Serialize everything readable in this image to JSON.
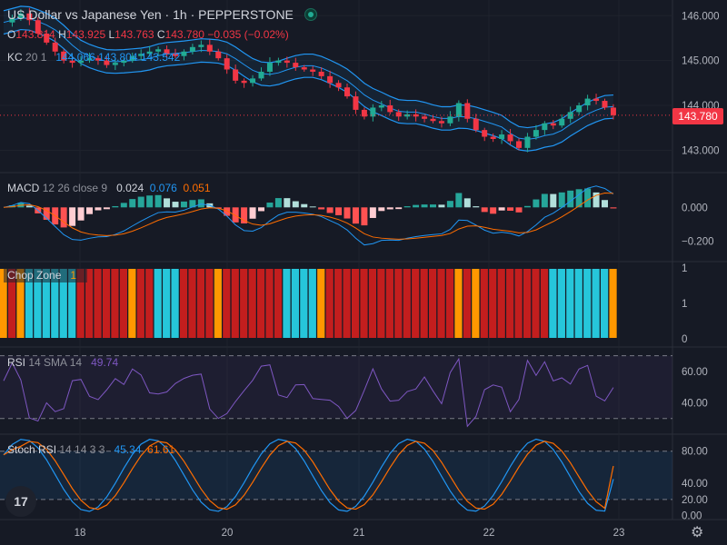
{
  "header": {
    "title": "US Dollar vs Japanese Yen · 1h · PEPPERSTONE",
    "ohlc": {
      "o_label": "O",
      "o": "143.814",
      "h_label": "H",
      "h": "143.925",
      "l_label": "L",
      "l": "143.763",
      "c_label": "C",
      "c": "143.780",
      "change": "−0.035 (−0.02%)"
    }
  },
  "indicators": {
    "kc": {
      "label": "KC",
      "params": "20 1",
      "v1": "144.066",
      "v2": "143.804",
      "v3": "143.542"
    },
    "macd": {
      "label": "MACD",
      "params": "12 26 close 9",
      "v1": "0.024",
      "v2": "0.076",
      "v3": "0.051"
    },
    "chop": {
      "label": "Chop Zone",
      "value": "1"
    },
    "rsi": {
      "label": "RSI",
      "params": "14 SMA 14",
      "value": "49.74"
    },
    "stoch": {
      "label": "Stoch RSI",
      "params": "14 14 3 3",
      "v1": "45.34",
      "v2": "61.61"
    }
  },
  "price_label": "143.780",
  "axes": {
    "price": [
      "146.000",
      "145.000",
      "144.000",
      "143.000"
    ],
    "macd": [
      "0.000",
      "−0.200"
    ],
    "chop": [
      "1",
      "1",
      "0"
    ],
    "rsi": [
      "60.00",
      "40.00"
    ],
    "stoch": [
      "80.00",
      "40.00",
      "20.00",
      "0.00"
    ],
    "time": [
      "18",
      "20",
      "21",
      "22",
      "23"
    ]
  },
  "chart_data": {
    "type": "candlestick",
    "symbol": "US Dollar vs Japanese Yen",
    "interval": "1h",
    "source": "PEPPERSTONE",
    "price_range": [
      142.5,
      146.35
    ],
    "time_ticks": [
      "18",
      "20",
      "21",
      "22",
      "23"
    ],
    "close_path": [
      145.85,
      145.95,
      146.05,
      145.9,
      145.6,
      145.4,
      145.2,
      145.0,
      144.95,
      145.0,
      145.05,
      145.0,
      144.9,
      144.95,
      145.0,
      145.1,
      145.15,
      145.2,
      145.25,
      145.15,
      145.1,
      145.2,
      145.3,
      145.35,
      145.2,
      145.05,
      144.8,
      144.55,
      144.5,
      144.6,
      144.75,
      144.95,
      145.0,
      144.95,
      144.85,
      144.8,
      144.75,
      144.65,
      144.5,
      144.4,
      144.2,
      143.9,
      143.75,
      143.95,
      144.0,
      143.85,
      143.75,
      143.8,
      143.75,
      143.7,
      143.65,
      143.6,
      143.75,
      144.05,
      143.7,
      143.45,
      143.3,
      143.25,
      143.35,
      143.2,
      143.05,
      143.3,
      143.45,
      143.6,
      143.55,
      143.7,
      143.85,
      144.0,
      144.15,
      144.1,
      143.95,
      143.78
    ],
    "kc": {
      "upper_last": 144.066,
      "mid_last": 143.804,
      "lower_last": 143.542
    },
    "macd": {
      "range": [
        -0.32,
        0.2
      ],
      "hist_last": 0.024,
      "macd_last": 0.076,
      "signal_last": 0.051
    },
    "chop_zone": {
      "range": [
        0,
        1
      ],
      "last": 1
    },
    "rsi": {
      "range": [
        20,
        75
      ],
      "bands": [
        70,
        30
      ],
      "last": 49.74
    },
    "stoch_rsi": {
      "range": [
        -5,
        100
      ],
      "bands": [
        80,
        20
      ],
      "k_last": 45.34,
      "d_last": 61.61
    },
    "colors": {
      "up": "#22ab94",
      "down": "#f23645",
      "kc": "#2196f3",
      "macd": "#2196f3",
      "signal": "#ff6d00",
      "rsi": "#7e57c2",
      "chop_red": "#c31e1e",
      "chop_cyan": "#26c6da",
      "chop_orange": "#ff9800"
    }
  }
}
